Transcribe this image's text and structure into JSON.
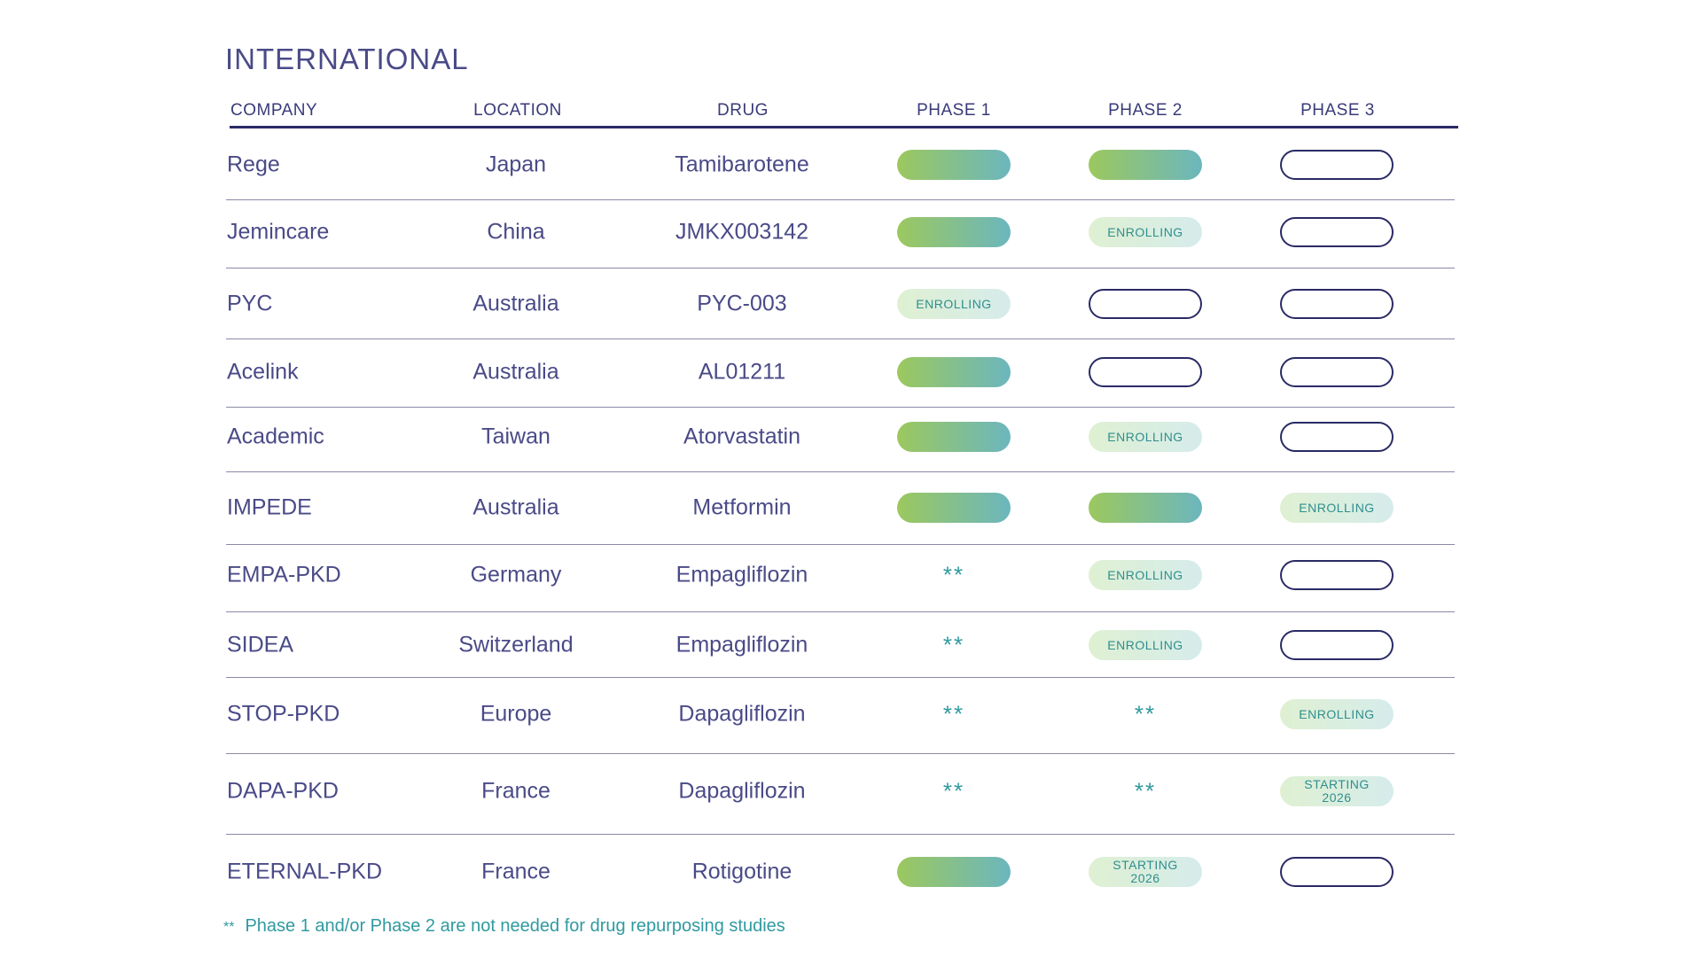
{
  "title": "INTERNATIONAL",
  "headers": {
    "company": "COMPANY",
    "location": "LOCATION",
    "drug": "DRUG",
    "phase1": "PHASE 1",
    "phase2": "PHASE 2",
    "phase3": "PHASE 3"
  },
  "colors": {
    "navy": "#2a2a66",
    "complete_gradient_start": "#9cc85e",
    "complete_gradient_end": "#6cb6be",
    "teal": "#2f9aa0"
  },
  "status_labels": {
    "enrolling": "ENROLLING",
    "starting": "STARTING\n2026",
    "stars": "**"
  },
  "rows": [
    {
      "company": "Rege",
      "location": "Japan",
      "drug": "Tamibarotene",
      "phases": [
        "complete",
        "complete",
        "empty"
      ]
    },
    {
      "company": "Jemincare",
      "location": "China",
      "drug": "JMKX003142",
      "phases": [
        "complete",
        "enrolling",
        "empty"
      ]
    },
    {
      "company": "PYC",
      "location": "Australia",
      "drug": "PYC-003",
      "phases": [
        "enrolling",
        "empty",
        "empty"
      ]
    },
    {
      "company": "Acelink",
      "location": "Australia",
      "drug": "AL01211",
      "phases": [
        "complete",
        "empty",
        "empty"
      ]
    },
    {
      "company": "Academic",
      "location": "Taiwan",
      "drug": "Atorvastatin",
      "phases": [
        "complete",
        "enrolling",
        "empty"
      ]
    },
    {
      "company": "IMPEDE",
      "location": "Australia",
      "drug": "Metformin",
      "phases": [
        "complete",
        "complete",
        "enrolling"
      ]
    },
    {
      "company": "EMPA-PKD",
      "location": "Germany",
      "drug": "Empagliflozin",
      "phases": [
        "not_needed",
        "enrolling",
        "empty"
      ]
    },
    {
      "company": "SIDEA",
      "location": "Switzerland",
      "drug": "Empagliflozin",
      "phases": [
        "not_needed",
        "enrolling",
        "empty"
      ]
    },
    {
      "company": "STOP-PKD",
      "location": "Europe",
      "drug": "Dapagliflozin",
      "phases": [
        "not_needed",
        "not_needed",
        "enrolling"
      ]
    },
    {
      "company": "DAPA-PKD",
      "location": "France",
      "drug": "Dapagliflozin",
      "phases": [
        "not_needed",
        "not_needed",
        "starting"
      ]
    },
    {
      "company": "ETERNAL-PKD",
      "location": "France",
      "drug": "Rotigotine",
      "phases": [
        "complete",
        "starting",
        "empty"
      ]
    }
  ],
  "footnote": {
    "mark": "**",
    "text": "Phase 1 and/or Phase 2 are not needed for drug repurposing studies"
  }
}
